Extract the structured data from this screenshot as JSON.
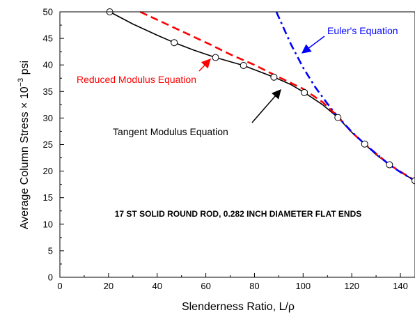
{
  "chart_data": {
    "type": "line",
    "title": "",
    "xlabel": "Slenderness Ratio, L/ρ",
    "ylabel_main": "Average Column Stress × 10",
    "ylabel_exp": "−3",
    "ylabel_unit": " psi",
    "xlim": [
      0,
      146
    ],
    "ylim": [
      0,
      50
    ],
    "x_ticks": [
      0,
      20,
      40,
      60,
      80,
      100,
      120,
      140
    ],
    "y_ticks": [
      0,
      5,
      10,
      15,
      20,
      25,
      30,
      35,
      40,
      45,
      50
    ],
    "grid": false,
    "note": "17 ST SOLID ROUND ROD, 0.282 INCH DIAMETER FLAT ENDS",
    "colors": {
      "tangent": "#000000",
      "reduced": "#ff0000",
      "euler": "#0000ff"
    },
    "series": [
      {
        "name": "Tangent Modulus Equation",
        "style": "solid",
        "x": [
          20.5,
          30,
          40,
          47,
          55,
          64,
          75.5,
          88,
          95,
          100.5,
          108,
          114.3,
          120,
          125.3,
          130,
          135.5,
          140,
          146
        ],
        "y": [
          50,
          47.7,
          45.6,
          44.2,
          42.8,
          41.4,
          39.9,
          37.7,
          36.3,
          34.8,
          32.5,
          30.1,
          27.3,
          25.1,
          23.1,
          21.2,
          19.8,
          18.2
        ]
      },
      {
        "name": "Reduced Modulus Equation",
        "style": "dashed",
        "x": [
          33,
          62,
          70,
          80,
          90,
          100,
          108,
          114.3,
          120,
          125.3,
          135.5,
          146
        ],
        "y": [
          50,
          43.8,
          42,
          40,
          37.7,
          35.5,
          33,
          30.3,
          27.3,
          25.1,
          21.2,
          18.2
        ]
      },
      {
        "name": "Euler's Equation",
        "style": "dashdot",
        "x": [
          89,
          95,
          100,
          105,
          110,
          114.3,
          120,
          125.3,
          130,
          135.5,
          140,
          146
        ],
        "y": [
          50,
          43.9,
          39.5,
          35.8,
          32.7,
          30.2,
          27.4,
          25.1,
          23.3,
          21.2,
          19.8,
          18.2
        ]
      }
    ],
    "markers": {
      "x": [
        20.5,
        47,
        64,
        75.5,
        88,
        100.5,
        114.3,
        125.3,
        135.5,
        146
      ],
      "y": [
        50,
        44.2,
        41.4,
        39.9,
        37.7,
        34.8,
        30.1,
        25.1,
        21.2,
        18.2
      ]
    },
    "annotations": [
      {
        "id": "euler",
        "text": "Euler's Equation",
        "color": "#0000ff",
        "arrow_to": [
          100.5,
          40.5
        ]
      },
      {
        "id": "reduced",
        "text": "Reduced Modulus Equation",
        "color": "#ff0000",
        "arrow_to": [
          62,
          43.8
        ]
      },
      {
        "id": "tangent",
        "text": "Tangent Modulus Equation",
        "color": "#000000",
        "arrow_to": [
          100,
          36.3
        ]
      }
    ]
  }
}
